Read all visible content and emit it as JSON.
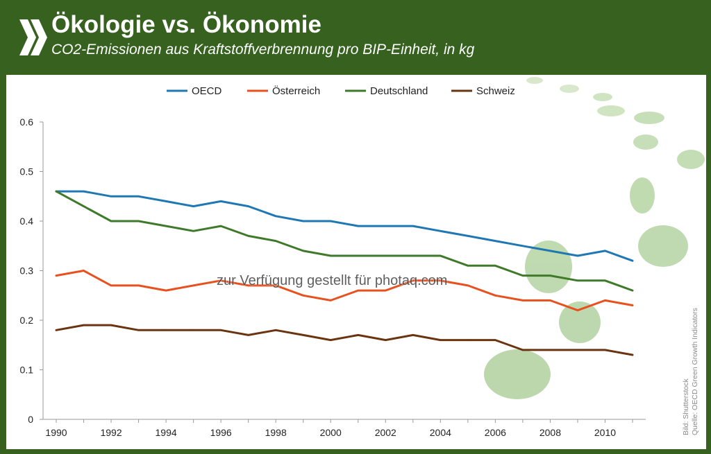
{
  "header": {
    "title": "Ökologie vs. Ökonomie",
    "subtitle": "CO2-Emissionen aus Kraftstoffverbrennung pro BIP-Einheit, in kg",
    "background_color": "#36611f",
    "logo_icon": "oecd-chevrons-icon"
  },
  "watermark": "zur Verfügung gestellt für photaq.com",
  "source": {
    "line1": "Bild: Shutterstock",
    "line2": "Quelle: OECD Green Growth Indicators"
  },
  "decoration": {
    "icon": "grass-footprints-icon"
  },
  "chart_data": {
    "type": "line",
    "title": "Ökologie vs. Ökonomie",
    "subtitle": "CO2-Emissionen aus Kraftstoffverbrennung pro BIP-Einheit, in kg",
    "xlabel": "",
    "ylabel": "",
    "x": [
      1990,
      1991,
      1992,
      1993,
      1994,
      1995,
      1996,
      1997,
      1998,
      1999,
      2000,
      2001,
      2002,
      2003,
      2004,
      2005,
      2006,
      2007,
      2008,
      2009,
      2010,
      2011
    ],
    "x_tick_labels": [
      "1990",
      "1992",
      "1994",
      "1996",
      "1998",
      "2000",
      "2002",
      "2004",
      "2006",
      "2008",
      "2010"
    ],
    "y_tick_labels": [
      "0",
      "0.1",
      "0.2",
      "0.3",
      "0.4",
      "0.5",
      "0.6"
    ],
    "xlim": [
      1990,
      2011
    ],
    "ylim": [
      0,
      0.6
    ],
    "grid": false,
    "legend_position": "top",
    "series": [
      {
        "name": "OECD",
        "color": "#1f77b4",
        "values": [
          0.46,
          0.46,
          0.45,
          0.45,
          0.44,
          0.43,
          0.44,
          0.43,
          0.41,
          0.4,
          0.4,
          0.39,
          0.39,
          0.39,
          0.38,
          0.37,
          0.36,
          0.35,
          0.34,
          0.33,
          0.34,
          0.32
        ]
      },
      {
        "name": "Österreich",
        "color": "#e8501e",
        "values": [
          0.29,
          0.3,
          0.27,
          0.27,
          0.26,
          0.27,
          0.28,
          0.27,
          0.27,
          0.25,
          0.24,
          0.26,
          0.26,
          0.28,
          0.28,
          0.27,
          0.25,
          0.24,
          0.24,
          0.22,
          0.24,
          0.23
        ]
      },
      {
        "name": "Deutschland",
        "color": "#3e7a2a",
        "values": [
          0.46,
          0.43,
          0.4,
          0.4,
          0.39,
          0.38,
          0.39,
          0.37,
          0.36,
          0.34,
          0.33,
          0.33,
          0.33,
          0.33,
          0.33,
          0.31,
          0.31,
          0.29,
          0.29,
          0.28,
          0.28,
          0.26
        ]
      },
      {
        "name": "Schweiz",
        "color": "#6b3410",
        "values": [
          0.18,
          0.19,
          0.19,
          0.18,
          0.18,
          0.18,
          0.18,
          0.17,
          0.18,
          0.17,
          0.16,
          0.17,
          0.16,
          0.17,
          0.16,
          0.16,
          0.16,
          0.14,
          0.14,
          0.14,
          0.14,
          0.13
        ]
      }
    ]
  }
}
